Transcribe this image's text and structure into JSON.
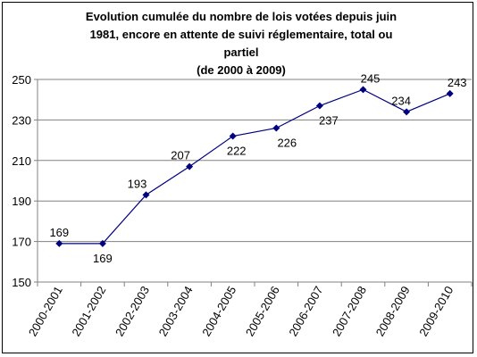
{
  "chart_data": {
    "type": "line",
    "title_lines": [
      "Evolution cumulée du nombre de lois votées depuis juin",
      "1981, encore en attente de suivi réglementaire, total ou",
      "partiel",
      "(de 2000 à 2009)"
    ],
    "categories": [
      "2000-2001",
      "2001-2002",
      "2002-2003",
      "2003-2004",
      "2004-2005",
      "2005-2006",
      "2006-2007",
      "2007-2008",
      "2008-2009",
      "2009-2010"
    ],
    "series": [
      {
        "values": [
          169,
          169,
          193,
          207,
          222,
          226,
          237,
          245,
          234,
          243
        ]
      }
    ],
    "data_labels": [
      "169",
      "169",
      "193",
      "207",
      "222",
      "226",
      "237",
      "245",
      "234",
      "243"
    ],
    "yticks": [
      150,
      170,
      190,
      210,
      230,
      250
    ],
    "ylim": [
      150,
      250
    ],
    "grid": true,
    "legend": "none",
    "colors": {
      "line": "#000080",
      "marker": "#000080",
      "grid": "#808080",
      "axis": "#808080"
    }
  }
}
